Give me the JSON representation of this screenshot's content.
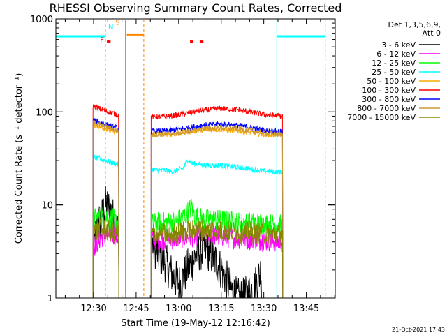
{
  "chart_data": {
    "type": "line",
    "title": "RHESSI Observing Summary Count Rates, Corrected",
    "xlabel": "Start Time (19-May-12 12:16:42)",
    "ylabel": "Corrected Count Rate (s⁻¹ detector⁻¹)",
    "yscale": "log",
    "ylim": [
      1,
      1000
    ],
    "xlim_minutes": [
      0,
      98.5
    ],
    "x_unit": "minutes after start time",
    "x_ticks": [
      {
        "label": "12:30",
        "x": 13.3
      },
      {
        "label": "12:45",
        "x": 28.3
      },
      {
        "label": "13:00",
        "x": 43.3
      },
      {
        "label": "13:15",
        "x": 58.3
      },
      {
        "label": "13:30",
        "x": 73.3
      },
      {
        "label": "13:45",
        "x": 88.3
      }
    ],
    "y_ticks": [
      {
        "label": "1",
        "value": 1
      },
      {
        "label": "10",
        "value": 10
      },
      {
        "label": "100",
        "value": 100
      },
      {
        "label": "1000",
        "value": 1000
      }
    ],
    "legend_header": [
      "Det 1,3,5,6,9,",
      "Att 0"
    ],
    "legend_position": "right",
    "series": [
      {
        "name": "3 - 6 keV",
        "color": "#000000",
        "segments": [
          [
            [
              13.1,
              3
            ],
            [
              14.5,
              6
            ],
            [
              16,
              7
            ],
            [
              17.5,
              10
            ],
            [
              19,
              9
            ],
            [
              22.2,
              5
            ]
          ],
          [
            [
              33.6,
              4
            ],
            [
              36,
              3
            ],
            [
              38,
              2.6
            ],
            [
              40,
              2
            ],
            [
              42,
              1.6
            ],
            [
              44,
              1.4
            ],
            [
              46,
              2
            ],
            [
              48,
              2.4
            ],
            [
              50,
              3.1
            ],
            [
              52,
              3.3
            ],
            [
              54,
              3.1
            ],
            [
              56,
              2.6
            ],
            [
              58,
              2.1
            ],
            [
              60,
              1.6
            ],
            [
              62,
              1.2
            ],
            [
              64,
              1
            ],
            [
              66,
              1
            ],
            [
              68,
              1.1
            ],
            [
              70,
              1.3
            ],
            [
              72.5,
              2
            ]
          ]
        ]
      },
      {
        "name": "6 - 12 keV",
        "color": "#ff00ff",
        "segments": [
          [
            [
              13.1,
              3.5
            ],
            [
              16,
              4.5
            ],
            [
              19,
              5
            ],
            [
              22.2,
              4.5
            ]
          ],
          [
            [
              33.6,
              4.2
            ],
            [
              40,
              4.3
            ],
            [
              46,
              4.5
            ],
            [
              52,
              4.8
            ],
            [
              58,
              4.6
            ],
            [
              64,
              4.4
            ],
            [
              72.5,
              4.2
            ],
            [
              80,
              4
            ]
          ]
        ]
      },
      {
        "name": "12 - 25 keV",
        "color": "#00ff00",
        "segments": [
          [
            [
              13.1,
              7
            ],
            [
              16,
              7.5
            ],
            [
              19,
              7.3
            ],
            [
              22.2,
              6.5
            ]
          ],
          [
            [
              33.6,
              6.3
            ],
            [
              40,
              6.5
            ],
            [
              44,
              7
            ],
            [
              46,
              8
            ],
            [
              48,
              9.5
            ],
            [
              49,
              7.5
            ],
            [
              52,
              7
            ],
            [
              58,
              6.8
            ],
            [
              64,
              6.5
            ],
            [
              72.5,
              6.3
            ],
            [
              80,
              6
            ]
          ]
        ]
      },
      {
        "name": "25 - 50 keV",
        "color": "#00ffff",
        "segments": [
          [
            [
              13.1,
              33
            ],
            [
              16,
              31
            ],
            [
              19,
              29
            ],
            [
              22.2,
              27
            ]
          ],
          [
            [
              33.6,
              24
            ],
            [
              38,
              23.5
            ],
            [
              42,
              23
            ],
            [
              45,
              25
            ],
            [
              46.5,
              31
            ],
            [
              48,
              28
            ],
            [
              52,
              27
            ],
            [
              58,
              26.5
            ],
            [
              64,
              25.5
            ],
            [
              70,
              24
            ],
            [
              74,
              23
            ],
            [
              80,
              22.5
            ]
          ]
        ]
      },
      {
        "name": "50 - 100 keV",
        "color": "#ffaa00",
        "segments": [
          [
            [
              13.1,
              72
            ],
            [
              16,
              68
            ],
            [
              19,
              64
            ],
            [
              22.2,
              60
            ]
          ],
          [
            [
              33.6,
              58
            ],
            [
              40,
              57
            ],
            [
              46,
              61
            ],
            [
              52,
              64
            ],
            [
              58,
              65
            ],
            [
              64,
              63
            ],
            [
              70,
              59
            ],
            [
              74,
              57
            ],
            [
              80,
              56
            ]
          ]
        ]
      },
      {
        "name": "100 - 300 keV",
        "color": "#ff0000",
        "segments": [
          [
            [
              13.1,
              115
            ],
            [
              16,
              107
            ],
            [
              19,
              99
            ],
            [
              22.2,
              93
            ]
          ],
          [
            [
              33.6,
              88
            ],
            [
              40,
              90
            ],
            [
              46,
              96
            ],
            [
              52,
              104
            ],
            [
              58,
              109
            ],
            [
              64,
              106
            ],
            [
              70,
              98
            ],
            [
              74,
              93
            ],
            [
              80,
              90
            ]
          ]
        ]
      },
      {
        "name": "300 - 800 keV",
        "color": "#0000ff",
        "segments": [
          [
            [
              13.1,
              82
            ],
            [
              16,
              76
            ],
            [
              19,
              71
            ],
            [
              22.2,
              66
            ]
          ],
          [
            [
              33.6,
              62
            ],
            [
              40,
              63
            ],
            [
              46,
              67
            ],
            [
              52,
              72
            ],
            [
              58,
              74
            ],
            [
              64,
              72
            ],
            [
              70,
              67
            ],
            [
              74,
              63
            ],
            [
              80,
              61
            ]
          ]
        ]
      },
      {
        "name": "800 - 7000 keV",
        "color": "#cc9933",
        "segments": [
          [
            [
              13.1,
              77
            ],
            [
              16,
              72
            ],
            [
              19,
              67
            ],
            [
              22.2,
              62
            ]
          ],
          [
            [
              33.6,
              57
            ],
            [
              40,
              58
            ],
            [
              46,
              61
            ],
            [
              52,
              66
            ],
            [
              58,
              68
            ],
            [
              64,
              66
            ],
            [
              70,
              62
            ],
            [
              74,
              59
            ],
            [
              80,
              57
            ]
          ]
        ]
      },
      {
        "name": "7000 - 15000 keV",
        "color": "#888800",
        "segments": [
          [
            [
              13.1,
              5
            ],
            [
              16,
              5.5
            ],
            [
              19,
              5.2
            ],
            [
              22.2,
              5
            ]
          ],
          [
            [
              33.6,
              5
            ],
            [
              40,
              4.8
            ],
            [
              46,
              5.2
            ],
            [
              52,
              5.5
            ],
            [
              58,
              5.3
            ],
            [
              64,
              5.1
            ],
            [
              72.5,
              5
            ],
            [
              80,
              4.8
            ]
          ]
        ]
      }
    ],
    "state_bars": [
      {
        "color": "#00ffff",
        "x": [
          0,
          17.5
        ],
        "y": 650
      },
      {
        "color": "#00ffff",
        "x": [
          77.9,
          95
        ],
        "y": 650
      },
      {
        "color": "#ff8800",
        "x": [
          25,
          31
        ],
        "y": 680
      },
      {
        "color": "#ff0000",
        "x": [
          18,
          19.3
        ],
        "y": 570
      },
      {
        "color": "#ff0000",
        "x": [
          47.3,
          48.5
        ],
        "y": 570
      },
      {
        "color": "#ff0000",
        "x": [
          50.7,
          52
        ],
        "y": 570
      }
    ],
    "state_markers": [
      {
        "label": "F",
        "color": "#ff0000",
        "x": 16.3,
        "y": 560
      },
      {
        "label": "N",
        "color": "#00ffff",
        "x": 19.4,
        "y": 770
      },
      {
        "label": "S",
        "color": "#ff8800",
        "x": 21.8,
        "y": 860
      }
    ],
    "vertical_lines": [
      {
        "color": "#00ffff",
        "style": "dashed",
        "x": 17.5
      },
      {
        "color": "#ff8800",
        "style": "solid",
        "x": 24.5
      },
      {
        "color": "#ff8800",
        "style": "dashed",
        "x": 31
      },
      {
        "color": "#00ffff",
        "style": "solid",
        "x": 77.9
      },
      {
        "color": "#00ffff",
        "style": "dashed",
        "x": 95
      }
    ],
    "grid": false
  },
  "footer_date": "21-Oct-2021 17:43"
}
